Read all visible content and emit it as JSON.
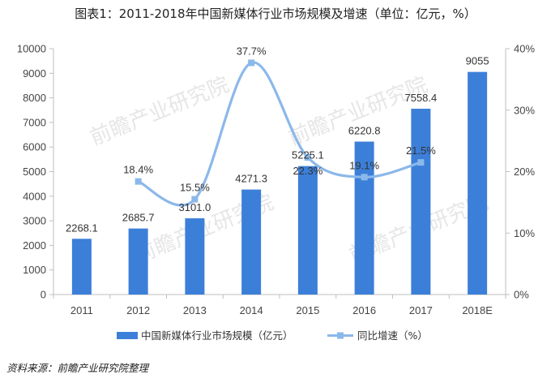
{
  "title": "图表1：2011-2018年中国新媒体行业市场规模及增速（单位：亿元，%）",
  "source": "资料来源：前瞻产业研究院整理",
  "watermark": "前瞻产业研究院",
  "colors": {
    "bar": "#3c7fd9",
    "line": "#8bb8ea",
    "marker": "#8bb8ea",
    "axis": "#bfbfbf",
    "grid": "#d9d9d9"
  },
  "chart_data": {
    "type": "bar",
    "categories": [
      "2011",
      "2012",
      "2013",
      "2014",
      "2015",
      "2016",
      "2017",
      "2018E"
    ],
    "ylim": [
      0,
      10000
    ],
    "yticks": [
      0,
      1000,
      2000,
      3000,
      4000,
      5000,
      6000,
      7000,
      8000,
      9000,
      10000
    ],
    "y2lim": [
      0,
      40
    ],
    "y2ticks": [
      "0%",
      "10%",
      "20%",
      "30%",
      "40%"
    ],
    "grid": false,
    "legend_position": "bottom",
    "series": [
      {
        "name": "中国新媒体行业市场规模（亿元）",
        "type": "bar",
        "axis": "left",
        "values": [
          2268.1,
          2685.7,
          3101.0,
          4271.3,
          5225.1,
          6220.8,
          7558.4,
          9055
        ],
        "labels": [
          "2268.1",
          "2685.7",
          "3101.0",
          "4271.3",
          "5225.1",
          "6220.8",
          "7558.4",
          "9055"
        ]
      },
      {
        "name": "同比增速（%）",
        "type": "line",
        "axis": "right",
        "values": [
          null,
          18.4,
          15.5,
          37.7,
          22.3,
          19.1,
          21.5,
          null
        ],
        "labels": [
          null,
          "18.4%",
          "15.5%",
          "37.7%",
          "22.3%",
          "19.1%",
          "21.5%",
          null
        ]
      }
    ]
  }
}
